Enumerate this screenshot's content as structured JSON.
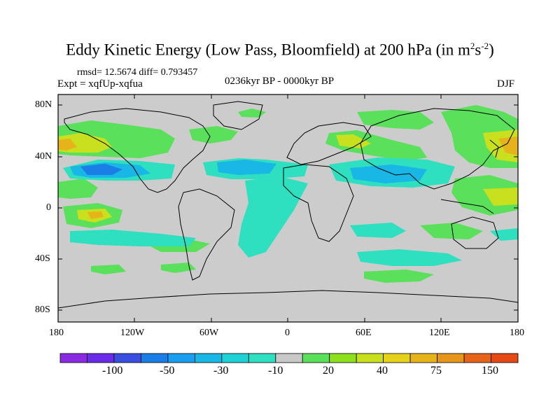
{
  "title": {
    "prefix": "Eddy Kinetic Energy (Low Pass, Bloomfield) at 200 hPa (in m",
    "sup1": "2",
    "mid": "s",
    "sup2": "-2",
    "suffix": ")"
  },
  "stats": "rmsd= 12.5674 diff= 0.793457",
  "expt": "Expt = xqfUp-xqfua",
  "period": "0236kyr BP - 0000kyr BP",
  "season": "DJF",
  "lat_ticks": [
    "80N",
    "40N",
    "0",
    "40S",
    "80S"
  ],
  "lon_ticks": [
    "180",
    "120W",
    "60W",
    "0",
    "60E",
    "120E",
    "180"
  ],
  "colorbar": {
    "labels": [
      "-100",
      "-50",
      "-30",
      "-10",
      "20",
      "40",
      "75",
      "150"
    ],
    "colors": [
      "#8a2be2",
      "#6a2ce6",
      "#3a4fe0",
      "#1a7ee6",
      "#1a9ef0",
      "#19b7e6",
      "#1ed1d6",
      "#2ee0c0",
      "#c8c8c8",
      "#5ae05a",
      "#8ce01e",
      "#c8e01e",
      "#e6d21a",
      "#e6b41a",
      "#e6961a",
      "#e6641a",
      "#e64a14"
    ]
  },
  "colors": {
    "land_bg": "#cccccc",
    "coast": "#000000",
    "neg_strong": "#1a7ee6",
    "neg_mid": "#19b7e6",
    "neg_weak": "#2ee0c0",
    "pos_weak": "#5ae05a",
    "pos_mid": "#c8e01e",
    "pos_strong": "#e6b41a"
  }
}
